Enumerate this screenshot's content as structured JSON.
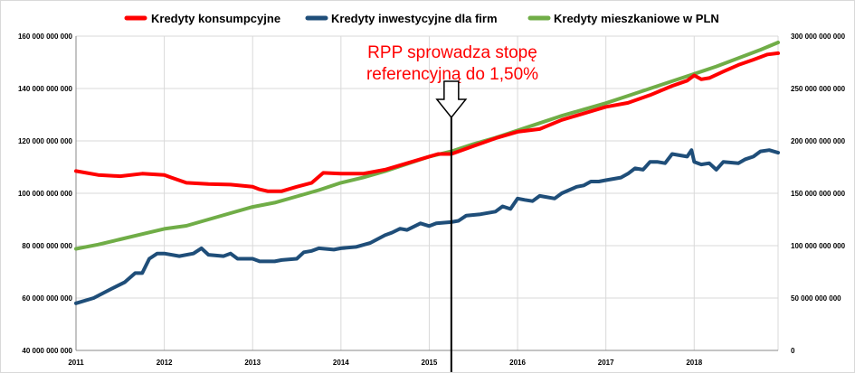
{
  "chart_data": {
    "type": "line",
    "legend_position": "top",
    "grid": true,
    "x_axis": {
      "range": [
        2011.0,
        2018.95
      ],
      "tick_labels": [
        "2011",
        "2012",
        "2013",
        "2014",
        "2015",
        "2016",
        "2017",
        "2018"
      ],
      "tick_values": [
        2011,
        2012,
        2013,
        2014,
        2015,
        2016,
        2017,
        2018
      ]
    },
    "y_left": {
      "range": [
        40000000000,
        160000000000
      ],
      "tick_values": [
        40000000000,
        60000000000,
        80000000000,
        100000000000,
        120000000000,
        140000000000,
        160000000000
      ],
      "tick_labels": [
        "40 000 000 000",
        "60 000 000 000",
        "80 000 000 000",
        "100 000 000 000",
        "120 000 000 000",
        "140 000 000 000",
        "160 000 000 000"
      ]
    },
    "y_right": {
      "range": [
        0,
        300000000000
      ],
      "tick_values": [
        0,
        50000000000,
        100000000000,
        150000000000,
        200000000000,
        250000000000,
        300000000000
      ],
      "tick_labels": [
        "0",
        "50 000 000 000",
        "100 000 000 000",
        "150 000 000 000",
        "200 000 000 000",
        "250 000 000 000",
        "300 000 000 000"
      ]
    },
    "series": [
      {
        "name": "Kredyty konsumpcyjne",
        "color": "#ff0000",
        "axis": "left",
        "points": [
          [
            2011.0,
            108500000000.0
          ],
          [
            2011.25,
            107000000000.0
          ],
          [
            2011.5,
            106500000000.0
          ],
          [
            2011.75,
            107500000000.0
          ],
          [
            2012.0,
            107000000000.0
          ],
          [
            2012.08,
            106000000000.0
          ],
          [
            2012.25,
            104000000000.0
          ],
          [
            2012.5,
            103500000000.0
          ],
          [
            2012.75,
            103300000000.0
          ],
          [
            2013.0,
            102500000000.0
          ],
          [
            2013.08,
            101500000000.0
          ],
          [
            2013.17,
            100800000000.0
          ],
          [
            2013.33,
            100800000000.0
          ],
          [
            2013.5,
            102500000000.0
          ],
          [
            2013.67,
            104000000000.0
          ],
          [
            2013.8,
            107800000000.0
          ],
          [
            2014.0,
            107500000000.0
          ],
          [
            2014.25,
            107500000000.0
          ],
          [
            2014.5,
            109000000000.0
          ],
          [
            2014.75,
            111500000000.0
          ],
          [
            2015.0,
            114000000000.0
          ],
          [
            2015.1,
            115000000000.0
          ],
          [
            2015.25,
            115000000000.0
          ],
          [
            2015.5,
            118000000000.0
          ],
          [
            2015.75,
            121000000000.0
          ],
          [
            2016.0,
            123500000000.0
          ],
          [
            2016.25,
            124500000000.0
          ],
          [
            2016.5,
            128000000000.0
          ],
          [
            2016.75,
            130500000000.0
          ],
          [
            2017.0,
            133000000000.0
          ],
          [
            2017.25,
            134500000000.0
          ],
          [
            2017.5,
            137500000000.0
          ],
          [
            2017.75,
            141000000000.0
          ],
          [
            2017.92,
            143000000000.0
          ],
          [
            2018.0,
            145000000000.0
          ],
          [
            2018.08,
            143500000000.0
          ],
          [
            2018.17,
            144000000000.0
          ],
          [
            2018.33,
            146500000000.0
          ],
          [
            2018.5,
            149000000000.0
          ],
          [
            2018.67,
            151000000000.0
          ],
          [
            2018.83,
            153000000000.0
          ],
          [
            2018.95,
            153500000000.0
          ]
        ]
      },
      {
        "name": "Kredyty inwestycyjne dla firm",
        "color": "#1f4e79",
        "axis": "left",
        "points": [
          [
            2011.0,
            58000000000.0
          ],
          [
            2011.2,
            60000000000.0
          ],
          [
            2011.4,
            63500000000.0
          ],
          [
            2011.55,
            66000000000.0
          ],
          [
            2011.67,
            69500000000.0
          ],
          [
            2011.75,
            69500000000.0
          ],
          [
            2011.83,
            75000000000.0
          ],
          [
            2011.92,
            77000000000.0
          ],
          [
            2012.0,
            77000000000.0
          ],
          [
            2012.17,
            76000000000.0
          ],
          [
            2012.33,
            77000000000.0
          ],
          [
            2012.42,
            79000000000.0
          ],
          [
            2012.5,
            76500000000.0
          ],
          [
            2012.67,
            76000000000.0
          ],
          [
            2012.75,
            77000000000.0
          ],
          [
            2012.83,
            75000000000.0
          ],
          [
            2013.0,
            75000000000.0
          ],
          [
            2013.08,
            74000000000.0
          ],
          [
            2013.25,
            74000000000.0
          ],
          [
            2013.33,
            74500000000.0
          ],
          [
            2013.5,
            75000000000.0
          ],
          [
            2013.58,
            77500000000.0
          ],
          [
            2013.67,
            78000000000.0
          ],
          [
            2013.75,
            79000000000.0
          ],
          [
            2013.92,
            78500000000.0
          ],
          [
            2014.0,
            79000000000.0
          ],
          [
            2014.17,
            79500000000.0
          ],
          [
            2014.33,
            81000000000.0
          ],
          [
            2014.5,
            84000000000.0
          ],
          [
            2014.58,
            85000000000.0
          ],
          [
            2014.67,
            86500000000.0
          ],
          [
            2014.75,
            86000000000.0
          ],
          [
            2014.9,
            88500000000.0
          ],
          [
            2015.0,
            87500000000.0
          ],
          [
            2015.08,
            88500000000.0
          ],
          [
            2015.25,
            89000000000.0
          ],
          [
            2015.33,
            89500000000.0
          ],
          [
            2015.42,
            91500000000.0
          ],
          [
            2015.58,
            92000000000.0
          ],
          [
            2015.75,
            93000000000.0
          ],
          [
            2015.83,
            95000000000.0
          ],
          [
            2015.92,
            94000000000.0
          ],
          [
            2016.0,
            98000000000.0
          ],
          [
            2016.08,
            97500000000.0
          ],
          [
            2016.17,
            97000000000.0
          ],
          [
            2016.25,
            99000000000.0
          ],
          [
            2016.42,
            98000000000.0
          ],
          [
            2016.5,
            100000000000.0
          ],
          [
            2016.67,
            102500000000.0
          ],
          [
            2016.75,
            103000000000.0
          ],
          [
            2016.83,
            104500000000.0
          ],
          [
            2016.92,
            104500000000.0
          ],
          [
            2017.0,
            105000000000.0
          ],
          [
            2017.17,
            106000000000.0
          ],
          [
            2017.25,
            107500000000.0
          ],
          [
            2017.33,
            109500000000.0
          ],
          [
            2017.42,
            109000000000.0
          ],
          [
            2017.5,
            112000000000.0
          ],
          [
            2017.58,
            112000000000.0
          ],
          [
            2017.67,
            111500000000.0
          ],
          [
            2017.75,
            115000000000.0
          ],
          [
            2017.92,
            114000000000.0
          ],
          [
            2017.97,
            116500000000.0
          ],
          [
            2018.0,
            112000000000.0
          ],
          [
            2018.08,
            111000000000.0
          ],
          [
            2018.17,
            111500000000.0
          ],
          [
            2018.25,
            109000000000.0
          ],
          [
            2018.33,
            112000000000.0
          ],
          [
            2018.5,
            111500000000.0
          ],
          [
            2018.58,
            113000000000.0
          ],
          [
            2018.67,
            114000000000.0
          ],
          [
            2018.75,
            116000000000.0
          ],
          [
            2018.85,
            116500000000.0
          ],
          [
            2018.95,
            115500000000.0
          ]
        ]
      },
      {
        "name": "Kredyty mieszkaniowe w PLN",
        "color": "#70ad47",
        "axis": "right",
        "points": [
          [
            2011.0,
            97000000000.0
          ],
          [
            2011.25,
            101000000000.0
          ],
          [
            2011.5,
            106000000000.0
          ],
          [
            2011.75,
            111000000000.0
          ],
          [
            2012.0,
            116000000000.0
          ],
          [
            2012.25,
            119000000000.0
          ],
          [
            2012.5,
            125000000000.0
          ],
          [
            2012.75,
            131000000000.0
          ],
          [
            2013.0,
            137000000000.0
          ],
          [
            2013.25,
            141000000000.0
          ],
          [
            2013.5,
            147000000000.0
          ],
          [
            2013.75,
            153000000000.0
          ],
          [
            2014.0,
            160000000000.0
          ],
          [
            2014.25,
            165000000000.0
          ],
          [
            2014.5,
            171000000000.0
          ],
          [
            2014.75,
            178000000000.0
          ],
          [
            2015.0,
            185000000000.0
          ],
          [
            2015.25,
            190000000000.0
          ],
          [
            2015.5,
            197000000000.0
          ],
          [
            2015.75,
            203000000000.0
          ],
          [
            2016.0,
            210000000000.0
          ],
          [
            2016.25,
            217000000000.0
          ],
          [
            2016.5,
            224000000000.0
          ],
          [
            2016.75,
            230000000000.0
          ],
          [
            2017.0,
            236000000000.0
          ],
          [
            2017.25,
            243000000000.0
          ],
          [
            2017.5,
            250000000000.0
          ],
          [
            2017.75,
            257000000000.0
          ],
          [
            2018.0,
            264000000000.0
          ],
          [
            2018.25,
            271000000000.0
          ],
          [
            2018.5,
            279000000000.0
          ],
          [
            2018.75,
            287000000000.0
          ],
          [
            2018.95,
            294000000000.0
          ]
        ]
      }
    ],
    "annotation": {
      "text_line1": "RPP sprowadza stopę",
      "text_line2": "referencyjną do 1,50%",
      "x": 2015.25
    }
  }
}
